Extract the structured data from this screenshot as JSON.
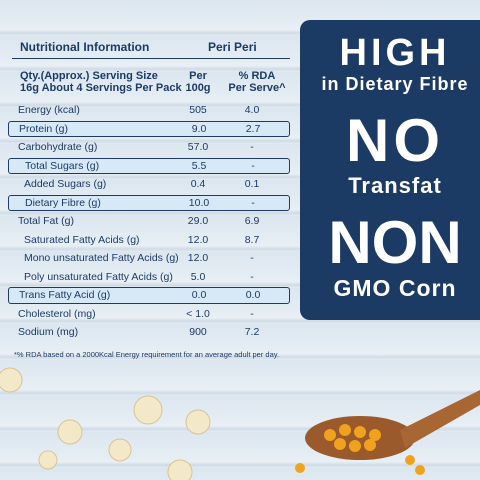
{
  "table": {
    "title": "Nutritional Information",
    "variant": "Peri Peri",
    "header": {
      "col0": [
        "Qty.(Approx.) Serving Size",
        "16g About 4 Servings Per Pack"
      ],
      "col1": [
        "Per",
        "100g"
      ],
      "col2": [
        "% RDA",
        "Per Serve^"
      ]
    },
    "rows": [
      [
        "Energy (kcal)",
        "505",
        "4.0"
      ],
      [
        "Protein (g)",
        "9.0",
        "2.7"
      ],
      [
        "Carbohydrate (g)",
        "57.0",
        "-"
      ],
      [
        "Total Sugars (g)",
        "5.5",
        "-"
      ],
      [
        "Added Sugars (g)",
        "0.4",
        "0.1"
      ],
      [
        "Dietary Fibre (g)",
        "10.0",
        "-"
      ],
      [
        "Total Fat (g)",
        "29.0",
        "6.9"
      ],
      [
        "Saturated Fatty Acids (g)",
        "12.0",
        "8.7"
      ],
      [
        "Mono unsaturated Fatty Acids (g)",
        "12.0",
        "-"
      ],
      [
        "Poly unsaturated Fatty Acids (g)",
        "5.0",
        "-"
      ],
      [
        "Trans Fatty Acid (g)",
        "0.0",
        "0.0"
      ],
      [
        "Cholesterol (mg)",
        "< 1.0",
        "-"
      ],
      [
        "Sodium (mg)",
        "900",
        "7.2"
      ]
    ],
    "footnote": "*% RDA based on a 2000Kcal Energy requirement for an average adult per day."
  },
  "badges": [
    {
      "big": "HIGH",
      "small": "in Dietary Fibre"
    },
    {
      "big": "NO",
      "small": "Transfat"
    },
    {
      "big": "NON",
      "small": "GMO Corn"
    }
  ]
}
